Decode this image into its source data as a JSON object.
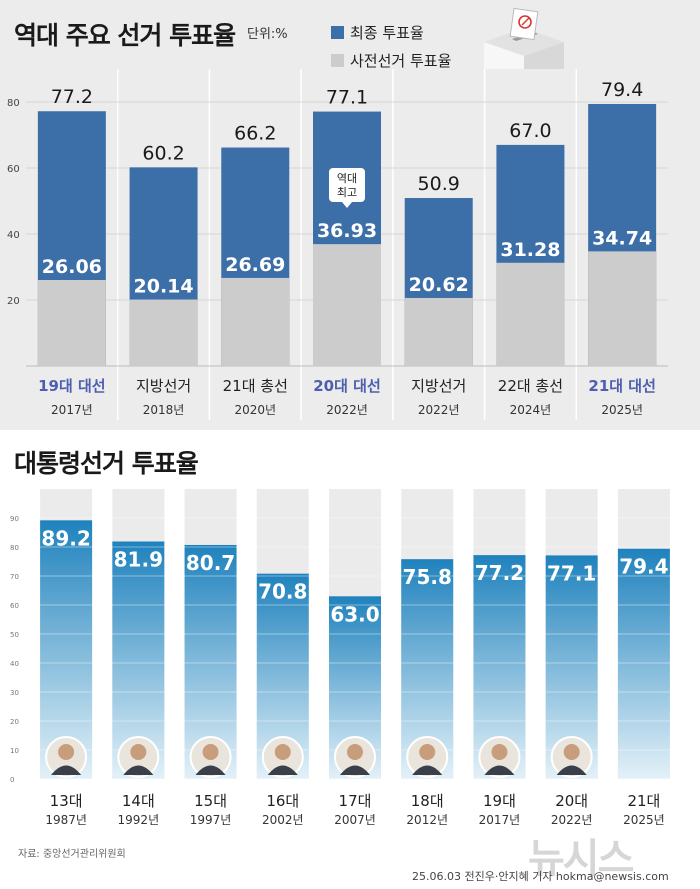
{
  "chart_data": [
    {
      "type": "bar",
      "title": "역대 주요 선거 투표율",
      "unit": "단위:%",
      "legend": [
        "최종 투표율",
        "사전선거 투표율"
      ],
      "categories": [
        "19대 대선",
        "지방선거",
        "21대 총선",
        "20대 대선",
        "지방선거",
        "22대 총선",
        "21대 대선"
      ],
      "years": [
        "2017년",
        "2018년",
        "2020년",
        "2022년",
        "2022년",
        "2024년",
        "2025년"
      ],
      "highlight": [
        true,
        false,
        false,
        true,
        false,
        false,
        true
      ],
      "series": [
        {
          "name": "최종 투표율",
          "values": [
            77.2,
            60.2,
            66.2,
            77.1,
            50.9,
            67.0,
            79.4
          ],
          "labels": [
            "77.2",
            "60.2",
            "66.2",
            "77.1",
            "50.9",
            "67.0",
            "79.4"
          ]
        },
        {
          "name": "사전선거 투표율",
          "values": [
            26.06,
            20.14,
            26.69,
            36.93,
            20.62,
            31.28,
            34.74
          ],
          "labels": [
            "26.06",
            "20.14",
            "26.69",
            "36.93",
            "20.62",
            "31.28",
            "34.74"
          ]
        }
      ],
      "annotation": {
        "index": 3,
        "lines": [
          "역대",
          "최고"
        ]
      },
      "ylim": [
        0,
        90
      ],
      "yticks": [
        "20",
        "40",
        "60",
        "80"
      ],
      "colors": {
        "final": "#3c6ea7",
        "early": "#cbcccb",
        "highlight_label": "#4d5fae"
      }
    },
    {
      "type": "bar",
      "title": "대통령선거 투표율",
      "categories": [
        "13대",
        "14대",
        "15대",
        "16대",
        "17대",
        "18대",
        "19대",
        "20대",
        "21대"
      ],
      "years": [
        "1987년",
        "1992년",
        "1997년",
        "2002년",
        "2007년",
        "2012년",
        "2017년",
        "2022년",
        "2025년"
      ],
      "values": [
        89.2,
        81.9,
        80.7,
        70.8,
        63.0,
        75.8,
        77.2,
        77.1,
        79.4
      ],
      "labels": [
        "89.2",
        "81.9",
        "80.7",
        "70.8",
        "63.0",
        "75.8",
        "77.2",
        "77.1",
        "79.4"
      ],
      "ylim": [
        0,
        100
      ],
      "yticks": [
        "0",
        "10",
        "20",
        "30",
        "40",
        "50",
        "60",
        "70",
        "80",
        "90"
      ],
      "colors": {
        "top": "#1f82bd",
        "bottom": "#e3f1f8"
      }
    }
  ],
  "footer": {
    "source": "자료: 중앙선거관리위원회",
    "credit": "25.06.03 전진우·안지혜 기자 hokma@newsis.com",
    "logo": "뉴시스"
  }
}
